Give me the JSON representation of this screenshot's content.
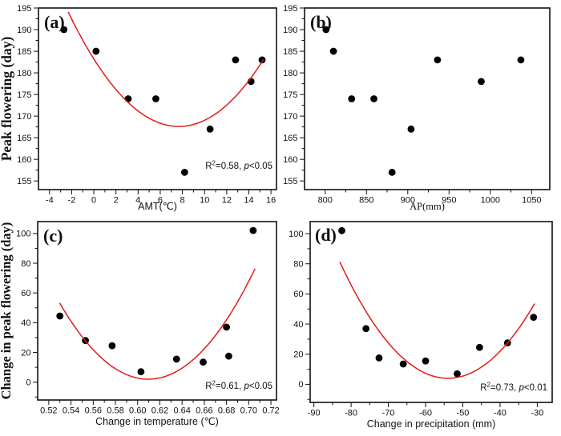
{
  "figure": {
    "background": "#ffffff",
    "point_color": "#000000",
    "fit_line_color": "#e31b1b",
    "axis_color": "#111111"
  },
  "chart_data": [
    {
      "id": "a",
      "type": "scatter",
      "panel_label": "(a)",
      "title": "",
      "xlabel": "AMT(℃)",
      "xlabel_serif": false,
      "ylabel": "Peak flowering (day)",
      "xlim": [
        -5,
        16.5
      ],
      "ylim": [
        153,
        195
      ],
      "xticks": [
        -4,
        -2,
        0,
        2,
        4,
        6,
        8,
        10,
        12,
        14,
        16
      ],
      "xtick_labels": [
        "-4",
        "-2",
        "0",
        "2",
        "4",
        "6",
        "8",
        "10",
        "12",
        "14",
        "16"
      ],
      "yticks": [
        155,
        160,
        165,
        170,
        175,
        180,
        185,
        190,
        195
      ],
      "ytick_labels": [
        "155",
        "160",
        "165",
        "170",
        "175",
        "180",
        "185",
        "190",
        "195"
      ],
      "grid": false,
      "legend": null,
      "points": [
        [
          -2.7,
          190
        ],
        [
          0.2,
          185
        ],
        [
          3.1,
          174
        ],
        [
          5.6,
          174
        ],
        [
          8.2,
          157
        ],
        [
          10.5,
          167
        ],
        [
          12.8,
          183
        ],
        [
          14.2,
          178
        ],
        [
          15.2,
          183
        ]
      ],
      "fit": {
        "kind": "quadratic",
        "a": 0.265,
        "vertex_x": 7.68,
        "vertex_y": 167.6,
        "x_start": -2.3,
        "x_end": 15.3
      },
      "annotation_parts": [
        [
          "R",
          ""
        ],
        [
          "2",
          "sup"
        ],
        [
          "=0.58, ",
          ""
        ],
        [
          "p",
          "italic"
        ],
        [
          "<0.05",
          ""
        ]
      ]
    },
    {
      "id": "b",
      "type": "scatter",
      "panel_label": "(b)",
      "title": "",
      "xlabel": "AP(mm)",
      "xlabel_serif": true,
      "ylabel": "",
      "xlim": [
        775,
        1072
      ],
      "ylim": [
        153,
        195
      ],
      "xticks": [
        800,
        850,
        900,
        950,
        1000,
        1050
      ],
      "xtick_labels": [
        "800",
        "850",
        "900",
        "950",
        "1000",
        "1050"
      ],
      "yticks": [
        155,
        160,
        165,
        170,
        175,
        180,
        185,
        190,
        195
      ],
      "ytick_labels": [
        "155",
        "160",
        "165",
        "170",
        "175",
        "180",
        "185",
        "190",
        "195"
      ],
      "grid": false,
      "legend": null,
      "points": [
        [
          801,
          190
        ],
        [
          810,
          185
        ],
        [
          832,
          174
        ],
        [
          859,
          174
        ],
        [
          881,
          157
        ],
        [
          904,
          167
        ],
        [
          936,
          183
        ],
        [
          989,
          178
        ],
        [
          1037,
          183
        ]
      ],
      "fit": null,
      "annotation_parts": null
    },
    {
      "id": "c",
      "type": "scatter",
      "panel_label": "(c)",
      "title": "",
      "xlabel": "Change in temperature (℃)",
      "xlabel_serif": false,
      "ylabel": "Change in peak flowering (day)",
      "xlim": [
        0.51,
        0.725
      ],
      "ylim": [
        -12,
        108
      ],
      "xticks": [
        0.52,
        0.54,
        0.56,
        0.58,
        0.6,
        0.62,
        0.64,
        0.66,
        0.68,
        0.7,
        0.72
      ],
      "xtick_labels": [
        "0.52",
        "0.54",
        "0.56",
        "0.58",
        "0.60",
        "0.62",
        "0.64",
        "0.66",
        "0.68",
        "0.70",
        "0.72"
      ],
      "yticks": [
        0,
        20,
        40,
        60,
        80,
        100
      ],
      "ytick_labels": [
        "0",
        "20",
        "40",
        "60",
        "80",
        "100"
      ],
      "grid": false,
      "legend": null,
      "points": [
        [
          0.53,
          44.5
        ],
        [
          0.553,
          28
        ],
        [
          0.577,
          24.5
        ],
        [
          0.603,
          7
        ],
        [
          0.635,
          15.5
        ],
        [
          0.659,
          13.5
        ],
        [
          0.68,
          37
        ],
        [
          0.682,
          17.5
        ],
        [
          0.704,
          102
        ]
      ],
      "fit": {
        "kind": "quadratic",
        "a": 8050,
        "vertex_x": 0.6096,
        "vertex_y": 2,
        "x_start": 0.53,
        "x_end": 0.7055
      },
      "annotation_parts": [
        [
          "R",
          ""
        ],
        [
          "2",
          "sup"
        ],
        [
          "=0.61, ",
          ""
        ],
        [
          "p",
          "italic"
        ],
        [
          "<0.05",
          ""
        ]
      ]
    },
    {
      "id": "d",
      "type": "scatter",
      "panel_label": "(d)",
      "title": "",
      "xlabel": "Change in precipitation (mm)",
      "xlabel_serif": false,
      "ylabel": "",
      "xlim": [
        -91,
        -26
      ],
      "ylim": [
        -12,
        108
      ],
      "xticks": [
        -90,
        -80,
        -70,
        -60,
        -50,
        -40,
        -30
      ],
      "xtick_labels": [
        "-90",
        "-80",
        "-70",
        "-60",
        "-50",
        "-40",
        "-30"
      ],
      "yticks": [
        0,
        20,
        40,
        60,
        80,
        100
      ],
      "ytick_labels": [
        "0",
        "20",
        "40",
        "60",
        "80",
        "100"
      ],
      "grid": false,
      "legend": null,
      "points": [
        [
          -82.5,
          102
        ],
        [
          -76,
          37
        ],
        [
          -72.5,
          17.5
        ],
        [
          -66,
          13.5
        ],
        [
          -60,
          15.5
        ],
        [
          -51.5,
          7
        ],
        [
          -45.5,
          24.5
        ],
        [
          -38,
          27.5
        ],
        [
          -31,
          44.5
        ]
      ],
      "fit": {
        "kind": "quadratic",
        "a": 0.0916,
        "vertex_x": -54,
        "vertex_y": 4,
        "x_start": -83,
        "x_end": -30.8
      },
      "annotation_parts": [
        [
          "R",
          ""
        ],
        [
          "2",
          "sup"
        ],
        [
          "=0.73, ",
          ""
        ],
        [
          "p",
          "italic"
        ],
        [
          "<0.01",
          ""
        ]
      ]
    }
  ]
}
